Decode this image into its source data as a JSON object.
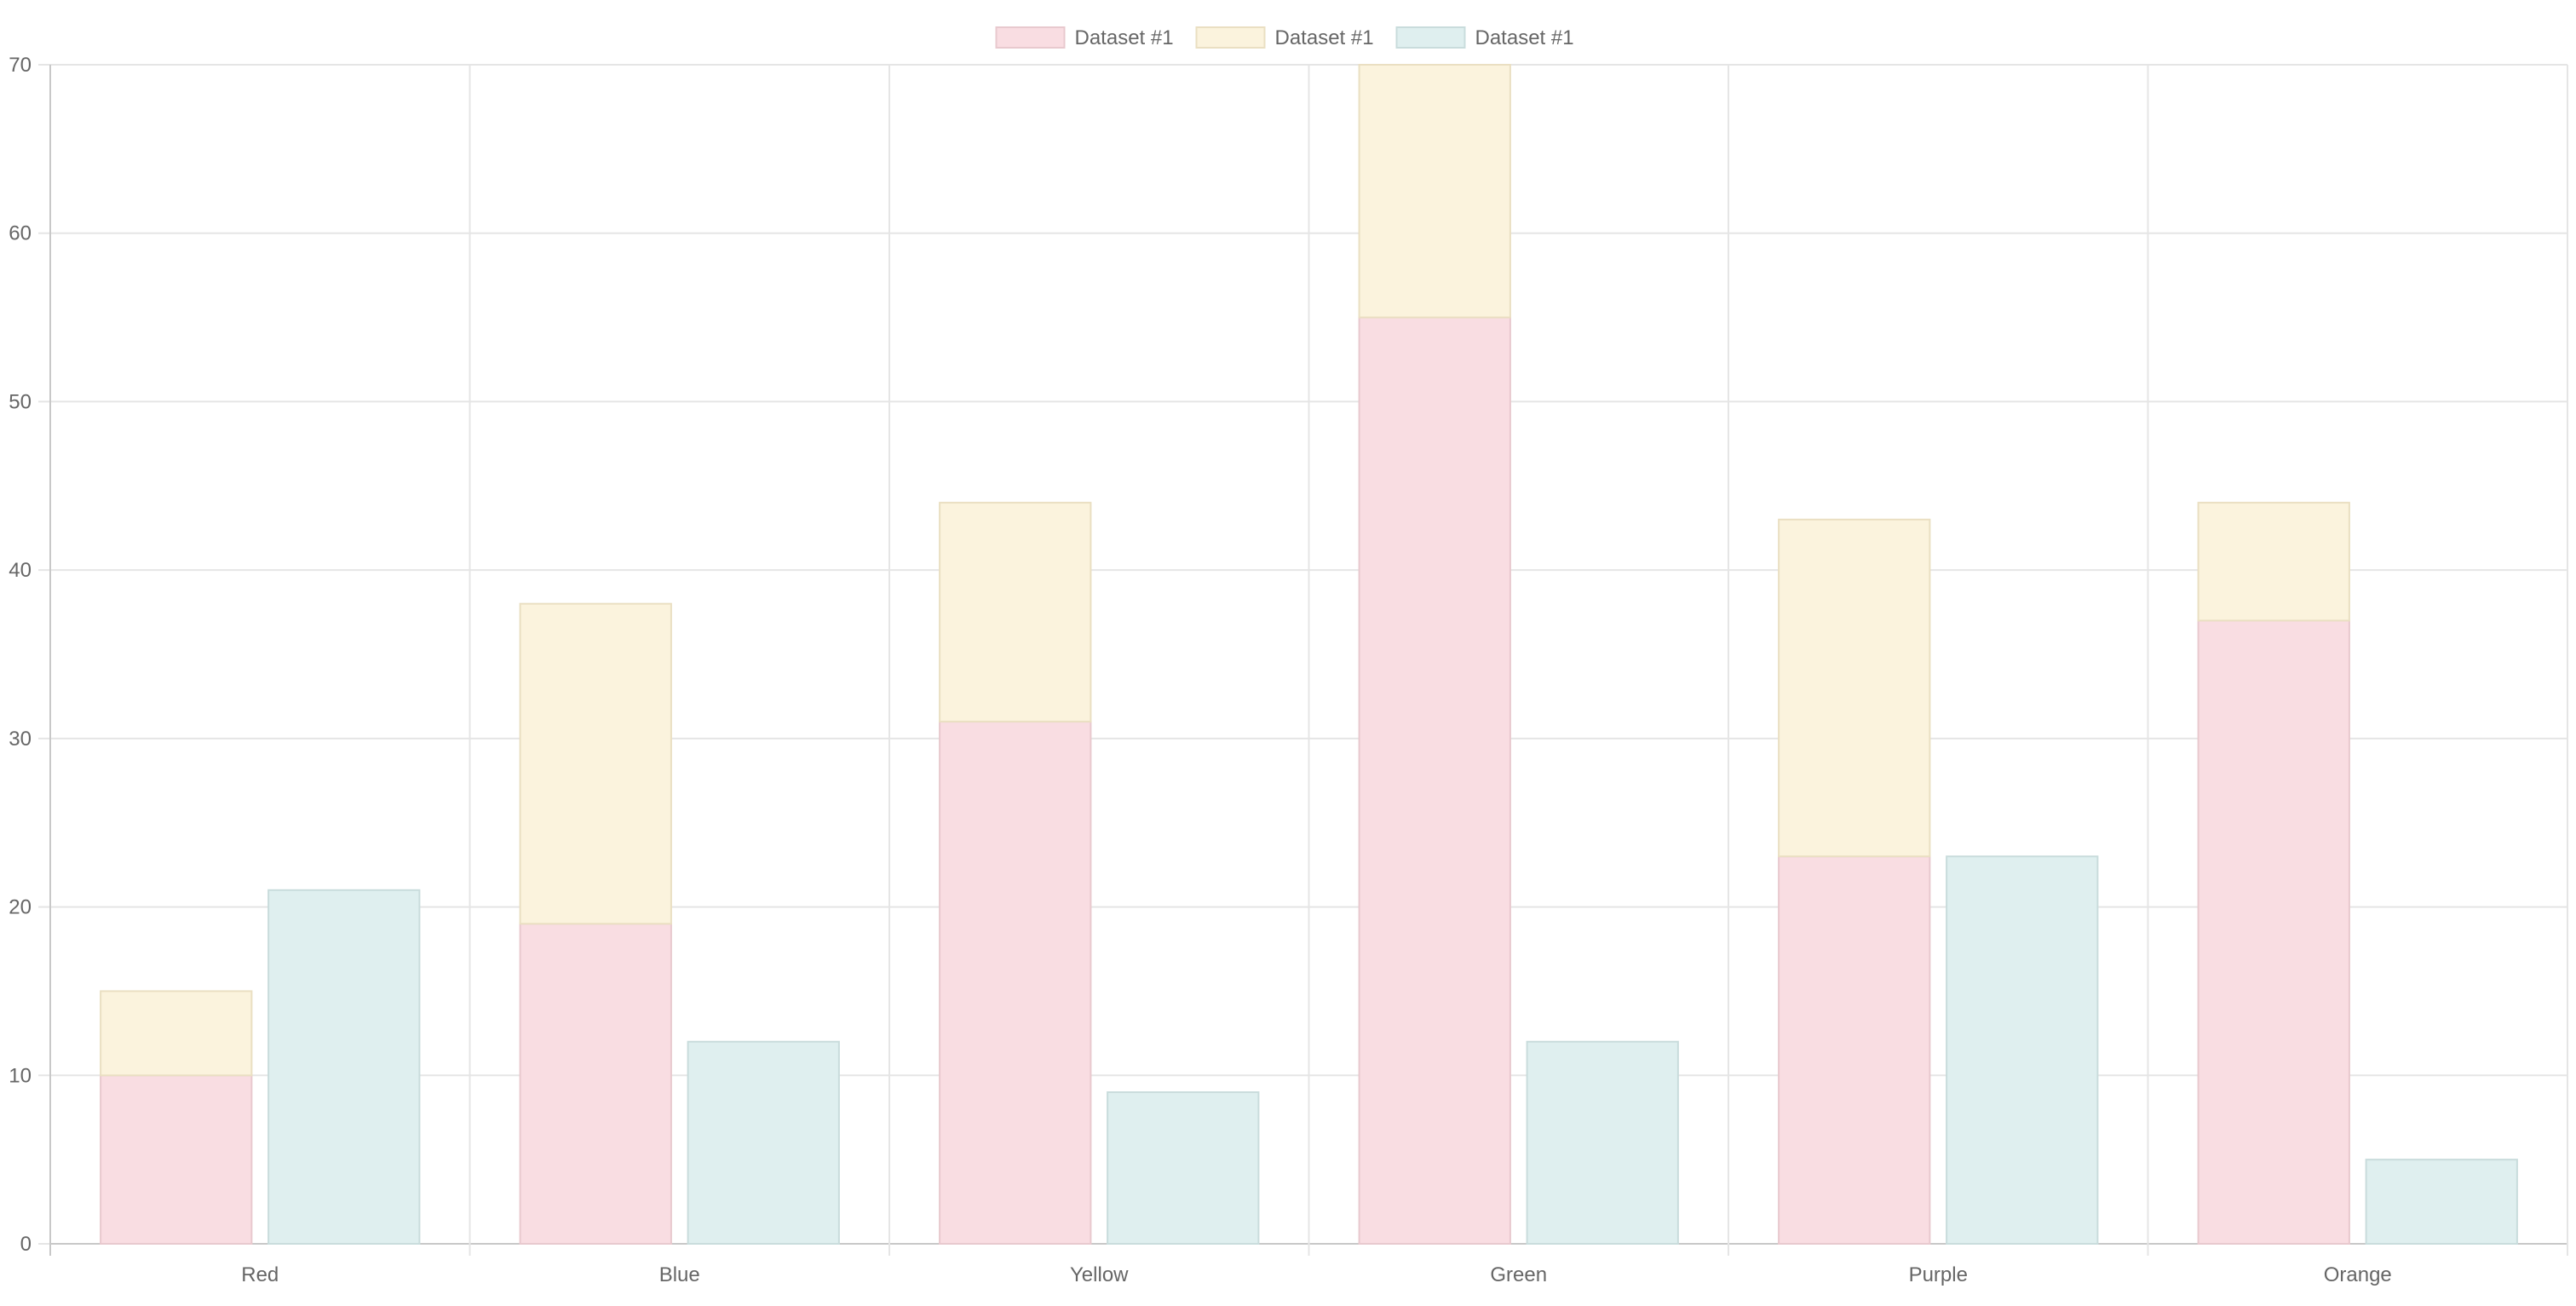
{
  "chart_data": {
    "type": "bar",
    "stacked": true,
    "categories": [
      "Red",
      "Blue",
      "Yellow",
      "Green",
      "Purple",
      "Orange"
    ],
    "series": [
      {
        "name": "Dataset #1",
        "stack": "Stack 0",
        "fill": "#f9dde2",
        "border": "#e8c9ce",
        "values": [
          10,
          19,
          31,
          55,
          23,
          37
        ]
      },
      {
        "name": "Dataset #1",
        "stack": "Stack 0",
        "fill": "#fbf3dd",
        "border": "#eadfc2",
        "values": [
          5,
          19,
          13,
          15,
          20,
          7
        ]
      },
      {
        "name": "Dataset #1",
        "stack": "Stack 1",
        "fill": "#dfefef",
        "border": "#c9dcdc",
        "values": [
          21,
          12,
          9,
          12,
          23,
          5
        ]
      }
    ],
    "ylim": [
      0,
      70
    ],
    "yticks": [
      "0",
      "10",
      "20",
      "30",
      "40",
      "50",
      "60",
      "70"
    ],
    "grid": true,
    "legend_position": "top-center",
    "colors": {
      "grid": "#e5e5e5",
      "axis": "#c8c8c8",
      "text": "#666666"
    }
  }
}
